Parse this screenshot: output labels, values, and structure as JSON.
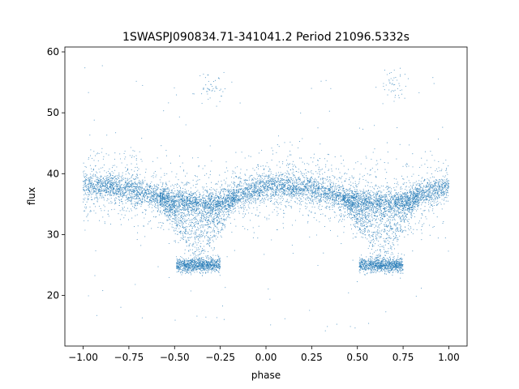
{
  "chart_data": {
    "type": "scatter",
    "title": "1SWASPJ090834.71-341041.2 Period 21096.5332s",
    "xlabel": "phase",
    "ylabel": "flux",
    "xlim": [
      -1.1,
      1.1
    ],
    "ylim": [
      11.7,
      60.8
    ],
    "xticks": [
      -1.0,
      -0.75,
      -0.5,
      -0.25,
      0.0,
      0.25,
      0.5,
      0.75,
      1.0
    ],
    "xtick_labels": [
      "−1.00",
      "−0.75",
      "−0.50",
      "−0.25",
      "0.00",
      "0.25",
      "0.50",
      "0.75",
      "1.00"
    ],
    "yticks": [
      20,
      30,
      40,
      50,
      60
    ],
    "ytick_labels": [
      "20",
      "30",
      "40",
      "50",
      "60"
    ],
    "grid": false,
    "legend": "none",
    "point_color": "#1f77b4",
    "series": [
      {
        "description_note": "",
        "baseline_curve": {
          "x": [
            -1.0,
            -0.75,
            -0.5,
            -0.3,
            -0.2,
            0.0,
            0.25,
            0.5,
            0.7,
            0.8,
            1.0
          ],
          "y": [
            38.0,
            37.5,
            35.5,
            35.0,
            36.0,
            38.0,
            37.5,
            35.5,
            35.0,
            36.0,
            38.0
          ]
        },
        "eclipse_cluster": {
          "x_center": [
            -0.37,
            0.63
          ],
          "x_range_half_width": 0.12,
          "y": 25.0
        },
        "bright_cluster": {
          "x_center": [
            -0.3,
            0.7
          ],
          "y": 54.5
        }
      }
    ]
  }
}
